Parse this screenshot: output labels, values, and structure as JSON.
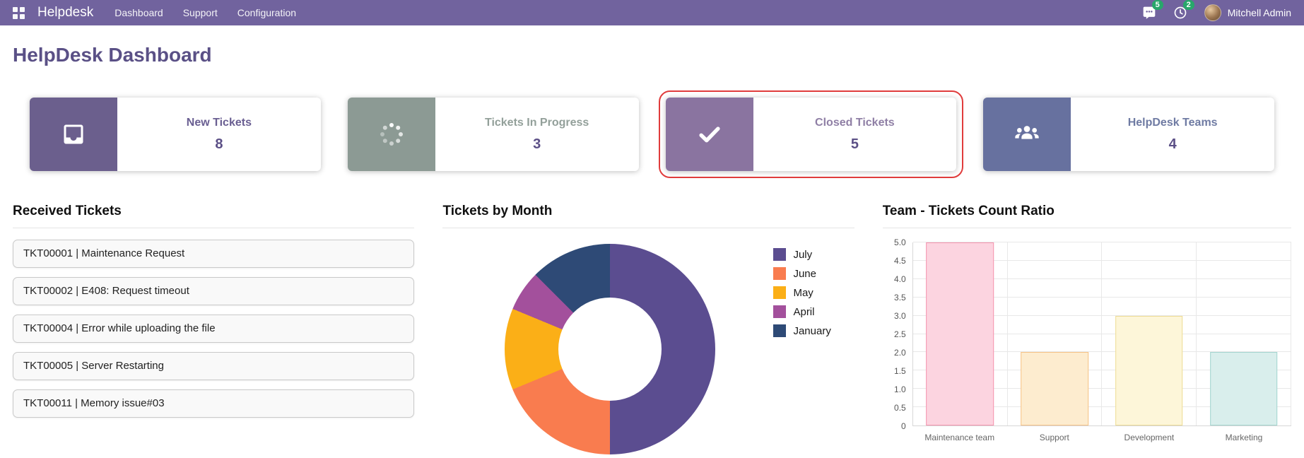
{
  "theme": {
    "navbar_bg": "#71639e",
    "title_color": "#5a5086",
    "badge_color": "#28a76b",
    "highlight_border": "#e03c3c",
    "kpi_value_color": "#5b4f86"
  },
  "nav": {
    "brand": "Helpdesk",
    "items": [
      {
        "label": "Dashboard"
      },
      {
        "label": "Support"
      },
      {
        "label": "Configuration"
      }
    ],
    "messages_badge": "5",
    "activities_badge": "2",
    "user_name": "Mitchell Admin"
  },
  "page": {
    "title": "HelpDesk Dashboard"
  },
  "kpis": [
    {
      "label": "New Tickets",
      "value": "8",
      "icon": "inbox-icon",
      "icon_bg": "#6b5f8d",
      "label_color": "#6a5f92",
      "highlighted": false
    },
    {
      "label": "Tickets In Progress",
      "value": "3",
      "icon": "spinner-icon",
      "icon_bg": "#8c9a94",
      "label_color": "#93a09a",
      "highlighted": false
    },
    {
      "label": "Closed Tickets",
      "value": "5",
      "icon": "check-icon",
      "icon_bg": "#8a74a0",
      "label_color": "#8f7fa5",
      "highlighted": true
    },
    {
      "label": "HelpDesk Teams",
      "value": "4",
      "icon": "team-icon",
      "icon_bg": "#67719f",
      "label_color": "#6f7ba3",
      "highlighted": false
    }
  ],
  "sections": {
    "received": {
      "title": "Received Tickets",
      "items": [
        "TKT00001 | Maintenance Request",
        "TKT00002 | E408: Request timeout",
        "TKT00004 | Error while uploading the file",
        "TKT00005 | Server Restarting",
        "TKT00011 | Memory issue#03"
      ]
    },
    "by_month": {
      "title": "Tickets by Month"
    },
    "team_ratio": {
      "title": "Team - Tickets Count Ratio"
    }
  },
  "chart_data": [
    {
      "type": "pie",
      "title": "Tickets by Month",
      "donut": true,
      "labels": [
        "July",
        "June",
        "May",
        "April",
        "January"
      ],
      "values": [
        8,
        3,
        2,
        1,
        2
      ],
      "colors": [
        "#5b4d90",
        "#f97c4f",
        "#fbaf17",
        "#a3509c",
        "#2e4a76"
      ],
      "legend_position": "right"
    },
    {
      "type": "bar",
      "title": "Team - Tickets Count Ratio",
      "categories": [
        "Maintenance team",
        "Support",
        "Development",
        "Marketing"
      ],
      "values": [
        5,
        2,
        3,
        2
      ],
      "fill_colors": [
        "#fcd4e0",
        "#fdeccf",
        "#fdf6d9",
        "#d9eeec"
      ],
      "border_colors": [
        "#f593ae",
        "#f6c286",
        "#eedc95",
        "#a3d5cf"
      ],
      "ylim": [
        0,
        5
      ],
      "ytick_step": 0.5,
      "grid": true
    }
  ]
}
